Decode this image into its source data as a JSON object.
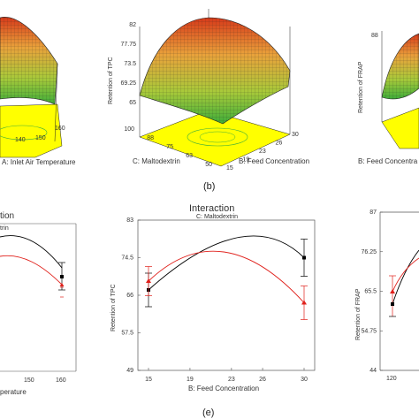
{
  "captions": {
    "top": "(b)",
    "bottom": "(e)"
  },
  "colors": {
    "series_black": "#000000",
    "series_red": "#e0201b",
    "floor": "#ffff00",
    "surface_high": "#d73a1a",
    "surface_mid": "#e9a23b",
    "surface_low": "#6bbf2e"
  },
  "chart_data": [
    {
      "id": "top-left",
      "type": "surface",
      "xlabel": "A: Inlet Air Temperature",
      "x_ticks": [
        "140",
        "150",
        "160"
      ]
    },
    {
      "id": "top-middle",
      "type": "surface",
      "zlabel": "Retention of TPC",
      "xlabel": "C: Maltodextrin",
      "ylabel": "B: Feed Concentration",
      "z_ticks": [
        "65",
        "69.25",
        "73.5",
        "77.75",
        "82"
      ],
      "x_ticks": [
        "100",
        "88",
        "75",
        "63",
        "50"
      ],
      "y_ticks": [
        "15",
        "19",
        "23",
        "26",
        "30"
      ],
      "zlim": [
        65,
        82
      ]
    },
    {
      "id": "top-right",
      "type": "surface",
      "zlabel": "Retention of FRAP",
      "ylabel": "B: Feed Concentra",
      "z_ticks": [
        "88"
      ]
    },
    {
      "id": "bottom-left",
      "type": "line",
      "title": "tion",
      "subtitle": "trin",
      "xlabel": "perature",
      "x_ticks": [
        "150",
        "160"
      ],
      "series": [
        {
          "name": "black",
          "points": [
            [
              160,
              71.2
            ]
          ],
          "err": [
            3.5
          ]
        },
        {
          "name": "red",
          "points": [
            [
              160,
              66.8
            ]
          ],
          "err": [
            3.0
          ]
        }
      ]
    },
    {
      "id": "bottom-middle",
      "type": "line",
      "title": "Interaction",
      "subtitle": "C: Maltodextrin",
      "xlabel": "B: Feed Concentration",
      "ylabel": "Retention of TPC",
      "x": [
        15,
        30
      ],
      "x_ticks": [
        "15",
        "19",
        "23",
        "26",
        "30"
      ],
      "y_ticks": [
        "49",
        "57.5",
        "66",
        "74.5",
        "83"
      ],
      "ylim": [
        49,
        83
      ],
      "xlim": [
        15,
        30
      ],
      "series": [
        {
          "name": "black",
          "values": [
            67.2,
            74.5
          ],
          "err": [
            3.8,
            4.2
          ]
        },
        {
          "name": "red",
          "values": [
            69.2,
            64.3
          ],
          "err": [
            3.3,
            3.8
          ]
        }
      ]
    },
    {
      "id": "bottom-right",
      "type": "line",
      "ylabel": "Retention of FRAP",
      "x_ticks": [
        "120"
      ],
      "y_ticks": [
        "44",
        "54.75",
        "65.5",
        "76.25",
        "87"
      ],
      "ylim": [
        44,
        87
      ]
    }
  ]
}
